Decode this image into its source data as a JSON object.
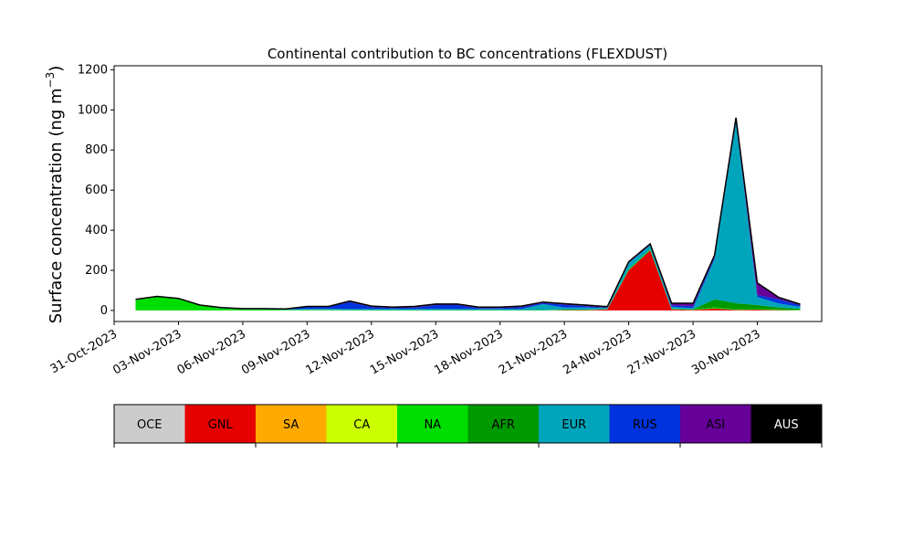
{
  "chart_data": {
    "type": "area",
    "stacked": true,
    "title": "Continental contribution to BC concentrations (FLEXDUST)",
    "ylabel": "Surface concentration (ng m⁻³)",
    "ylabel_parts": {
      "main": "Surface concentration (ng m",
      "sup": "−3",
      "end": ")"
    },
    "xlabel": "",
    "ylim": [
      -55,
      1220
    ],
    "yticks": [
      0,
      200,
      400,
      600,
      800,
      1000,
      1200
    ],
    "x_start": "31-Oct-2023",
    "x_end": "03-Dec-2023",
    "xticks": [
      "31-Oct-2023",
      "03-Nov-2023",
      "06-Nov-2023",
      "09-Nov-2023",
      "12-Nov-2023",
      "15-Nov-2023",
      "18-Nov-2023",
      "21-Nov-2023",
      "24-Nov-2023",
      "27-Nov-2023",
      "30-Nov-2023"
    ],
    "grid": false,
    "x": [
      "01-Nov-2023",
      "02-Nov-2023",
      "03-Nov-2023",
      "04-Nov-2023",
      "05-Nov-2023",
      "06-Nov-2023",
      "07-Nov-2023",
      "08-Nov-2023",
      "09-Nov-2023",
      "10-Nov-2023",
      "11-Nov-2023",
      "12-Nov-2023",
      "13-Nov-2023",
      "14-Nov-2023",
      "15-Nov-2023",
      "16-Nov-2023",
      "17-Nov-2023",
      "18-Nov-2023",
      "19-Nov-2023",
      "20-Nov-2023",
      "21-Nov-2023",
      "22-Nov-2023",
      "23-Nov-2023",
      "24-Nov-2023",
      "25-Nov-2023",
      "26-Nov-2023",
      "27-Nov-2023",
      "28-Nov-2023",
      "29-Nov-2023",
      "30-Nov-2023",
      "01-Dec-2023",
      "02-Dec-2023"
    ],
    "series": [
      {
        "name": "GNL",
        "color": "#e60000",
        "values": [
          0,
          0,
          0,
          0,
          0,
          0,
          0,
          0,
          0,
          0,
          0,
          0,
          0,
          0,
          0,
          0,
          0,
          0,
          0,
          0,
          2,
          2,
          5,
          200,
          300,
          5,
          3,
          10,
          3,
          4,
          2,
          1
        ]
      },
      {
        "name": "NA",
        "color": "#00dd00",
        "values": [
          55,
          70,
          60,
          25,
          10,
          5,
          5,
          3,
          3,
          3,
          2,
          2,
          2,
          2,
          2,
          2,
          2,
          2,
          2,
          2,
          2,
          2,
          2,
          5,
          5,
          3,
          3,
          5,
          3,
          3,
          3,
          2
        ]
      },
      {
        "name": "AFR",
        "color": "#009900",
        "values": [
          0,
          0,
          0,
          0,
          0,
          0,
          0,
          0,
          0,
          0,
          0,
          0,
          0,
          0,
          0,
          0,
          0,
          0,
          0,
          0,
          0,
          0,
          0,
          0,
          0,
          0,
          0,
          40,
          30,
          20,
          10,
          5
        ]
      },
      {
        "name": "EUR",
        "color": "#00a5bb",
        "values": [
          0,
          0,
          0,
          2,
          2,
          2,
          2,
          2,
          5,
          5,
          5,
          5,
          5,
          5,
          5,
          5,
          5,
          5,
          5,
          30,
          10,
          10,
          5,
          30,
          20,
          10,
          5,
          200,
          900,
          40,
          20,
          10
        ]
      },
      {
        "name": "RUS",
        "color": "#0033dd",
        "values": [
          0,
          0,
          0,
          0,
          2,
          2,
          2,
          3,
          10,
          10,
          35,
          10,
          5,
          8,
          20,
          20,
          5,
          5,
          10,
          5,
          15,
          8,
          2,
          3,
          2,
          8,
          10,
          10,
          10,
          10,
          20,
          8
        ]
      },
      {
        "name": "ASI",
        "color": "#660099",
        "values": [
          0,
          0,
          0,
          0,
          0,
          0,
          0,
          0,
          2,
          2,
          5,
          5,
          5,
          5,
          5,
          5,
          5,
          5,
          5,
          5,
          5,
          5,
          5,
          5,
          5,
          10,
          15,
          10,
          15,
          60,
          10,
          5
        ]
      }
    ],
    "legend": {
      "placement": "bottom colorbar",
      "items": [
        {
          "label": "OCE",
          "color": "#cccccc"
        },
        {
          "label": "GNL",
          "color": "#e60000"
        },
        {
          "label": "SA",
          "color": "#ffaa00"
        },
        {
          "label": "CA",
          "color": "#ccff00"
        },
        {
          "label": "NA",
          "color": "#00dd00"
        },
        {
          "label": "AFR",
          "color": "#009900"
        },
        {
          "label": "EUR",
          "color": "#00a5bb"
        },
        {
          "label": "RUS",
          "color": "#0033dd"
        },
        {
          "label": "ASI",
          "color": "#660099"
        },
        {
          "label": "AUS",
          "color": "#000000",
          "text_color": "#ffffff"
        }
      ]
    }
  }
}
